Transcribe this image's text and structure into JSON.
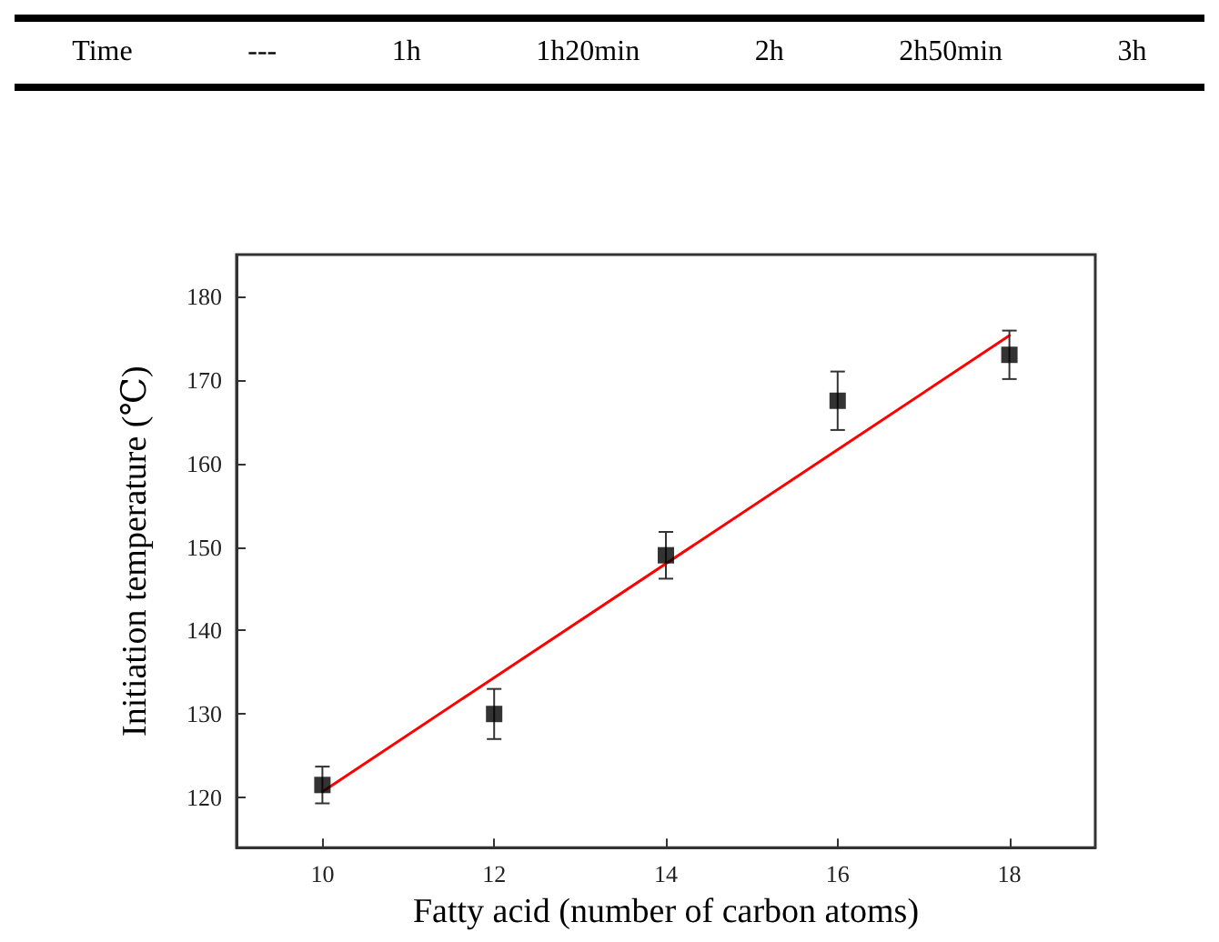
{
  "chart_data": {
    "type": "scatter",
    "xlabel": "Fatty acid (number of carbon atoms)",
    "ylabel": "Initiation temperature (℃)",
    "annotations": [
      "Time",
      "---",
      "1h",
      "1h20min",
      "2h",
      "2h50min",
      "3h"
    ],
    "x": [
      10,
      12,
      14,
      16,
      18
    ],
    "series": [
      {
        "color": "#000000",
        "values": [
          121.5,
          130,
          149,
          167.5,
          173
        ],
        "errors": [
          2.2,
          3,
          2.8,
          3.5,
          2.9
        ],
        "marker": "square"
      },
      {
        "type": "line",
        "color": "#ff0000",
        "x": [
          10,
          18
        ],
        "values": [
          120.7,
          175.3
        ],
        "marker": "none",
        "line_style": "solid"
      }
    ],
    "xlim": [
      9,
      19
    ],
    "xticks": [
      10,
      12,
      14,
      16,
      18
    ],
    "ylim": [
      114,
      185
    ],
    "yticks": [
      120,
      130,
      140,
      150,
      160,
      170,
      180
    ],
    "grid": false
  }
}
